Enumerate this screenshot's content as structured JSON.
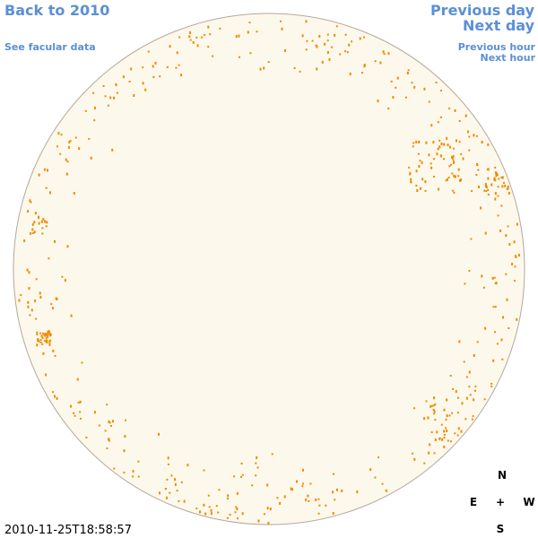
{
  "nav": {
    "back": "Back to 2010",
    "facular": "See facular data",
    "previous_day": "Previous day",
    "next_day": "Next day",
    "previous_hour": "Previous hour",
    "next_hour": "Next hour"
  },
  "compass": {
    "north": "N",
    "east": "E",
    "center": "+",
    "west": "W",
    "south": "S"
  },
  "timestamp": "2010-11-25T18:58:57"
}
